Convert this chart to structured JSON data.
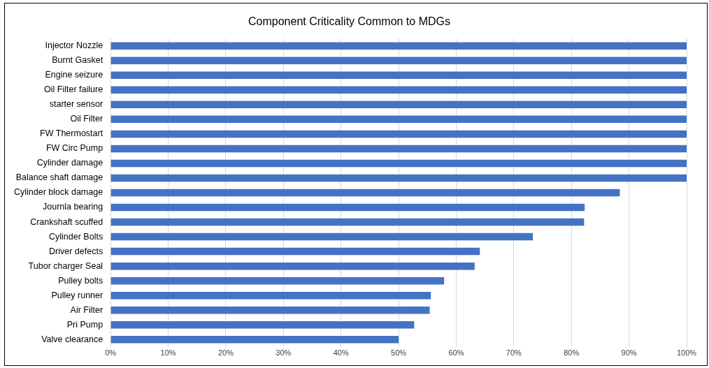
{
  "chart_data": {
    "type": "bar",
    "orientation": "horizontal",
    "title": "Component Criticality Common to MDGs",
    "categories": [
      "Injector Nozzle",
      "Burnt Gasket",
      "Engine seizure",
      "Oil Filter failure",
      "starter sensor",
      "Oil Filter",
      "FW Thermostart",
      "FW Circ Pump",
      "Cylinder damage",
      "Balance shaft damage",
      "Cylinder block damage",
      "Journla bearing",
      "Crankshaft scuffed",
      "Cylinder Bolts",
      "Driver defects",
      "Tubor charger Seal",
      "Pulley bolts",
      "Pulley runner",
      "Air Filter",
      "Pri Pump",
      "Valve clearance"
    ],
    "values": [
      100,
      100,
      100,
      100,
      100,
      100,
      100,
      100,
      100,
      100,
      88.4,
      82.3,
      82.2,
      73.3,
      64.1,
      63.2,
      57.9,
      55.6,
      55.4,
      52.7,
      50
    ],
    "color": "#4472c4",
    "xlim": [
      0,
      100
    ],
    "xticks": [
      {
        "value": 0,
        "label": "0%"
      },
      {
        "value": 10,
        "label": "10%"
      },
      {
        "value": 20,
        "label": "20%"
      },
      {
        "value": 30,
        "label": "30%"
      },
      {
        "value": 40,
        "label": "40%"
      },
      {
        "value": 50,
        "label": "50%"
      },
      {
        "value": 60,
        "label": "60%"
      },
      {
        "value": 70,
        "label": "70%"
      },
      {
        "value": 80,
        "label": "80%"
      },
      {
        "value": 90,
        "label": "90%"
      },
      {
        "value": 100,
        "label": "100%"
      }
    ],
    "grid": "x"
  }
}
